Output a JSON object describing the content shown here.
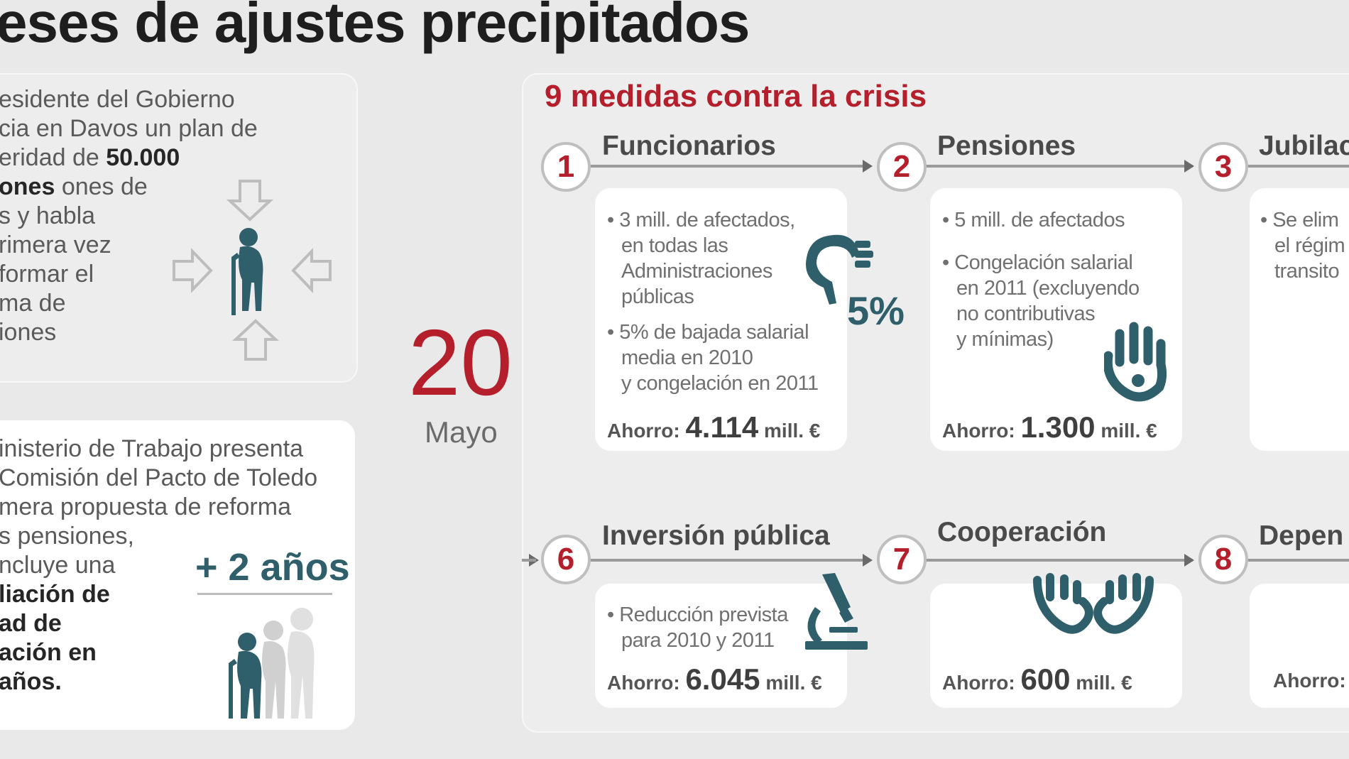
{
  "title": "eses de ajustes precipitados",
  "timeline": {
    "item1_lines": [
      "esidente del Gobierno",
      "cia en Davos un plan de",
      "eridad de ",
      "ones de",
      "s y habla",
      "rimera vez",
      "formar el",
      "ma de",
      "iones"
    ],
    "item1_bold": [
      "50.000",
      "ones"
    ],
    "item2_lines": [
      "inisterio de Trabajo presenta",
      "Comisión del Pacto de Toledo",
      "mera propuesta de reforma",
      "s pensiones,",
      "ncluye una",
      "liación de",
      "ad de",
      "ación en",
      "años."
    ],
    "item2_badge": "+ 2 años",
    "day": "20",
    "month": "Mayo"
  },
  "measures": {
    "title": "9 medidas contra la crisis",
    "items": [
      {
        "number": "1",
        "title": "Funcionarios",
        "bullets": [
          [
            "• 3 mill. de afectados,",
            "en todas las",
            "Administraciones",
            "públicas"
          ],
          [
            "• 5% de bajada salarial",
            "media en 2010",
            "y congelación en 2011"
          ]
        ],
        "badge": "5%",
        "saving_label": "Ahorro:",
        "saving_value": "4.114",
        "saving_unit": "mill. €"
      },
      {
        "number": "2",
        "title": "Pensiones",
        "bullets": [
          [
            "• 5 mill. de afectados"
          ],
          [
            "• Congelación salarial",
            "en 2011 (excluyendo",
            "no contributivas",
            "y mínimas)"
          ]
        ],
        "saving_label": "Ahorro:",
        "saving_value": "1.300",
        "saving_unit": "mill. €"
      },
      {
        "number": "3",
        "title": "Jubilac",
        "bullets": [
          [
            "• Se elim",
            "el régim",
            "transito"
          ]
        ]
      },
      {
        "number": "6",
        "title": "Inversión pública",
        "bullets": [
          [
            "• Reducción prevista",
            "para 2010 y 2011"
          ]
        ],
        "saving_label": "Ahorro:",
        "saving_value": "6.045",
        "saving_unit": "mill. €"
      },
      {
        "number": "7",
        "title": "Cooperación",
        "saving_label": "Ahorro:",
        "saving_value": "600",
        "saving_unit": "mill. €"
      },
      {
        "number": "8",
        "title": "Depen",
        "saving_label": "Ahorro:"
      }
    ]
  },
  "colors": {
    "accent_red": "#b41f2b",
    "teal": "#2e5f6a",
    "panel": "#ededee"
  },
  "icons": [
    "elderly-person-icon",
    "arrow-down-icon",
    "arrow-up-icon",
    "arrow-left-icon",
    "arrow-right-icon",
    "hand-coin-icon",
    "stop-hand-icon",
    "microscope-icon",
    "cooperation-hands-icon",
    "elderly-group-icon"
  ]
}
